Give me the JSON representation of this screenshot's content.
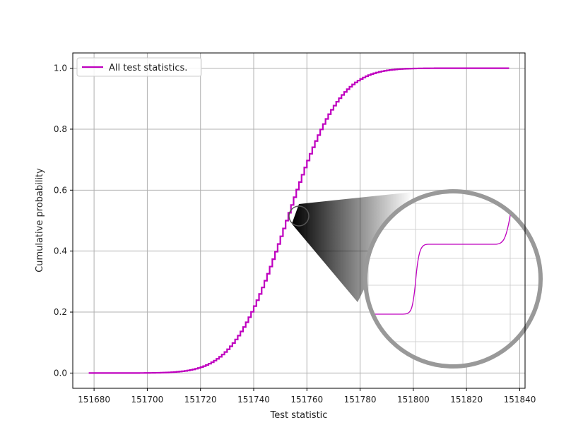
{
  "chart_data": {
    "type": "line",
    "title": "",
    "xlabel": "Test statistic",
    "ylabel": "Cumulative probability",
    "xlim": [
      151672,
      151842
    ],
    "ylim": [
      -0.05,
      1.05
    ],
    "xticks": [
      151680,
      151700,
      151720,
      151740,
      151760,
      151780,
      151800,
      151820,
      151840
    ],
    "yticks": [
      0.0,
      0.2,
      0.4,
      0.6,
      0.8,
      1.0
    ],
    "grid": true,
    "legend_position": "top-left",
    "series": [
      {
        "name": "All test statistics.",
        "color": "#bf00bf",
        "cdf": {
          "mean": 151752,
          "std": 15.5,
          "x_start": 151678,
          "x_end": 151836,
          "step": 1
        }
      }
    ],
    "inset": {
      "kind": "magnifier",
      "focus": [
        151756.5,
        0.51
      ],
      "shows": "step pattern of the CDF"
    }
  }
}
